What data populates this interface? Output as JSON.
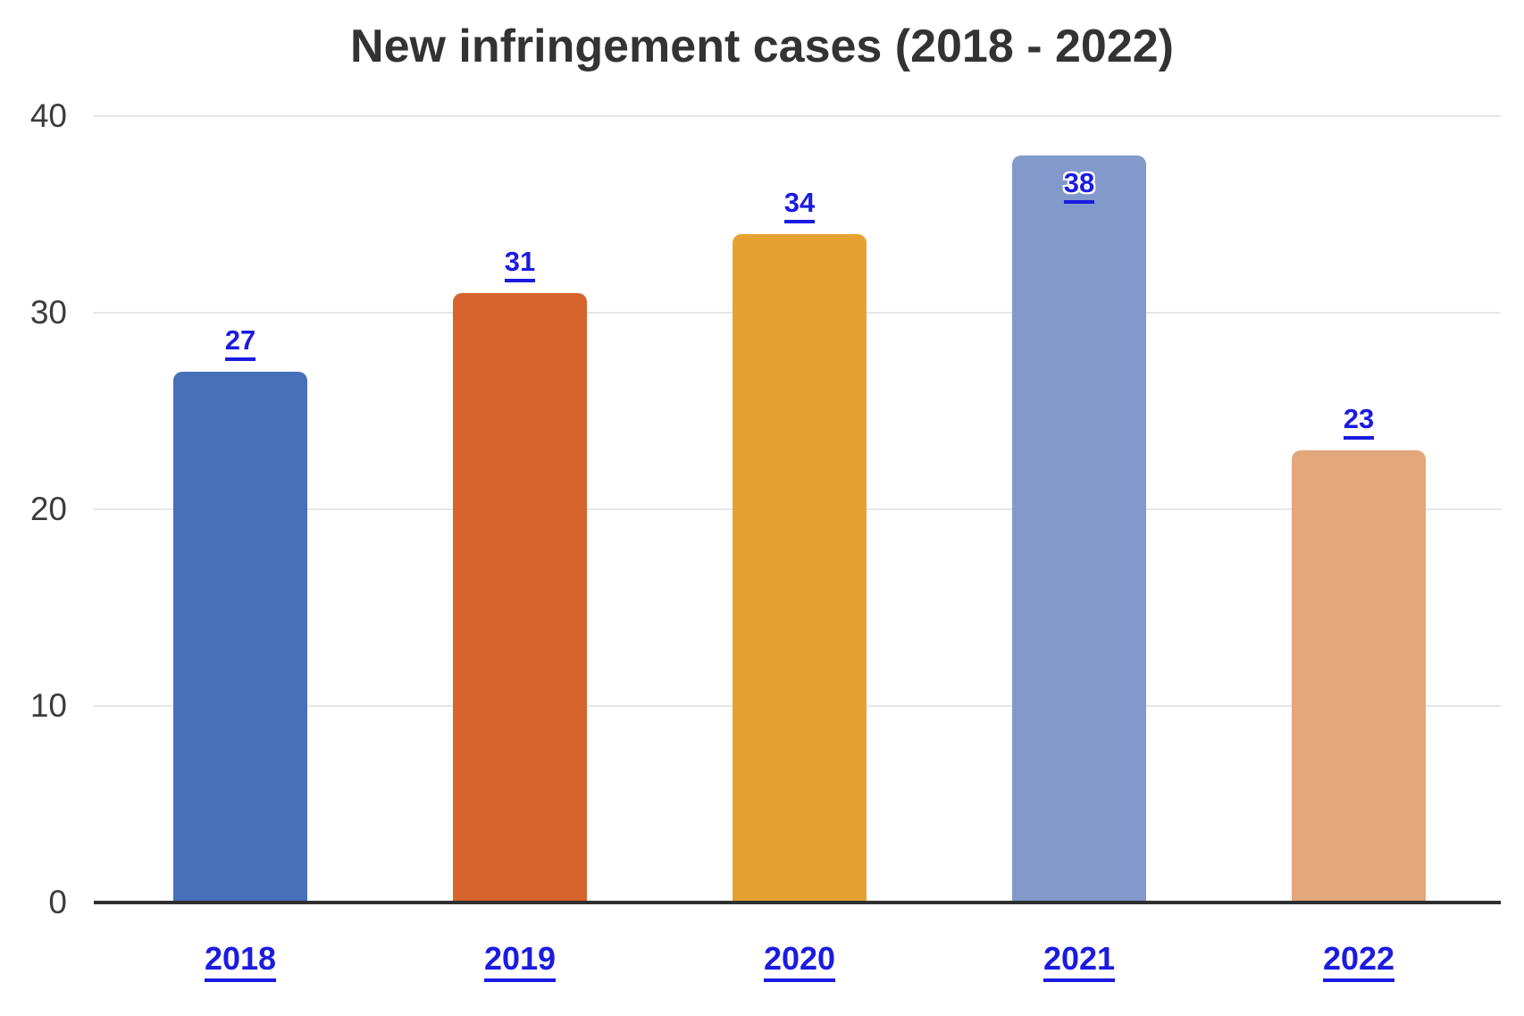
{
  "chart_data": {
    "type": "bar",
    "title": "New infringement cases (2018 - 2022)",
    "categories": [
      "2018",
      "2019",
      "2020",
      "2021",
      "2022"
    ],
    "values": [
      27,
      31,
      34,
      38,
      23
    ],
    "series": [
      {
        "name": "New infringement cases",
        "values": [
          27,
          31,
          34,
          38,
          23
        ]
      }
    ],
    "bar_colors": [
      "#4671B8",
      "#D7642D",
      "#E5A233",
      "#8399CB",
      "#E2A77B"
    ],
    "value_labels": [
      "27",
      "31",
      "34",
      "38",
      "23"
    ],
    "value_label_inside_bar": [
      false,
      false,
      false,
      true,
      false
    ],
    "xlabel": "",
    "ylabel": "",
    "yticks": [
      "0",
      "10",
      "20",
      "30",
      "40"
    ],
    "ytick_values": [
      0,
      10,
      20,
      30,
      40
    ],
    "ylim": [
      0,
      40
    ],
    "grid": true,
    "legend": "none",
    "colors": {
      "title_text": "#333333",
      "axis_tick_text": "#3C3C3C",
      "link_label_text": "#1B1BE0",
      "gridline": "#E6E6E6",
      "baseline": "#2F2F2F",
      "background": "#FFFFFF"
    }
  }
}
